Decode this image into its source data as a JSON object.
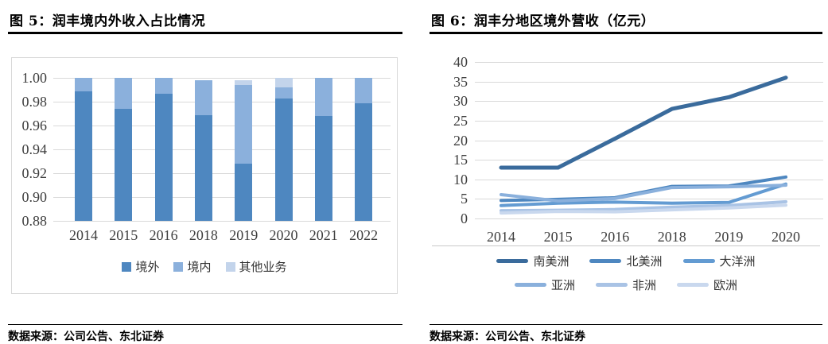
{
  "page": {
    "left_panel": {
      "title": "图 5：润丰境内外收入占比情况",
      "source": "数据来源：公司公告、东北证券"
    },
    "right_panel": {
      "title": "图 6：润丰分地区境外营收（亿元）",
      "source": "数据来源：公司公告、东北证券"
    }
  },
  "chart_data": [
    {
      "type": "bar",
      "stacked": true,
      "title": "润丰境内外收入占比情况",
      "categories": [
        "2014",
        "2015",
        "2016",
        "2018",
        "2019",
        "2020",
        "2021",
        "2022"
      ],
      "series": [
        {
          "name": "境外",
          "color": "#4e87c0",
          "values": [
            0.989,
            0.974,
            0.987,
            0.969,
            0.928,
            0.983,
            0.968,
            0.979
          ]
        },
        {
          "name": "境内",
          "color": "#8bb0dc",
          "values": [
            0.011,
            0.026,
            0.013,
            0.029,
            0.066,
            0.009,
            0.032,
            0.021
          ]
        },
        {
          "name": "其他业务",
          "color": "#c3d4eb",
          "values": [
            0,
            0,
            0,
            0,
            0.004,
            0.008,
            0,
            0
          ]
        }
      ],
      "ylim": [
        0.88,
        1.0
      ],
      "yticklabels": [
        "1.00",
        "0.98",
        "0.96",
        "0.94",
        "0.92",
        "0.90",
        "0.88"
      ],
      "grid": true,
      "legend_position": "bottom"
    },
    {
      "type": "line",
      "title": "润丰分地区境外营收（亿元）",
      "categories": [
        "2014",
        "2015",
        "2016",
        "2018",
        "2019",
        "2020"
      ],
      "series": [
        {
          "name": "南美洲",
          "color": "#3a6b9c",
          "line_width": 5,
          "values": [
            13,
            13,
            20.4,
            28,
            31,
            36
          ]
        },
        {
          "name": "北美洲",
          "color": "#4e87c0",
          "line_width": 4,
          "values": [
            4.6,
            4.9,
            5.3,
            8.2,
            8.3,
            10.6
          ]
        },
        {
          "name": "大洋洲",
          "color": "#639bd2",
          "line_width": 4,
          "values": [
            3.3,
            3.9,
            4.2,
            3.9,
            4.1,
            8.8
          ]
        },
        {
          "name": "亚洲",
          "color": "#8ab0dc",
          "line_width": 4,
          "values": [
            6.1,
            4.5,
            5.1,
            7.9,
            8.1,
            8.5
          ]
        },
        {
          "name": "非洲",
          "color": "#a9c3e5",
          "line_width": 4,
          "values": [
            2.0,
            2.1,
            2.3,
            2.9,
            3.3,
            4.3
          ]
        },
        {
          "name": "欧洲",
          "color": "#c9d8ee",
          "line_width": 4,
          "values": [
            1.4,
            1.8,
            1.7,
            2.2,
            2.7,
            3.4
          ]
        }
      ],
      "ylim": [
        0,
        40
      ],
      "yticks": [
        0,
        5,
        10,
        15,
        20,
        25,
        30,
        35,
        40
      ],
      "grid": true,
      "legend_position": "bottom"
    }
  ]
}
